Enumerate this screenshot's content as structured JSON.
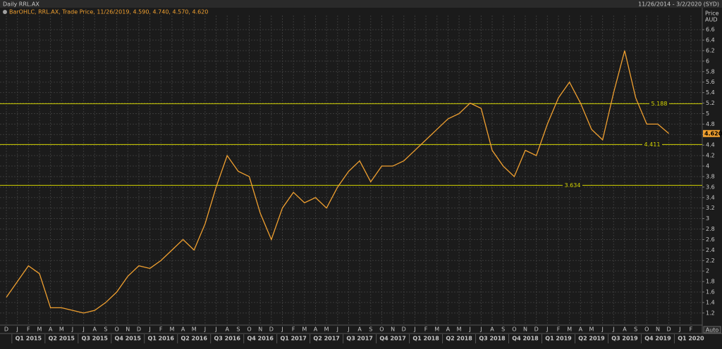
{
  "chart_data": {
    "type": "line",
    "title": "Daily RRL.AX",
    "date_range": "11/26/2014 - 3/2/2020 (SYD)",
    "legend_text": "BarOHLC, RRL.AX, Trade Price, 11/26/2019, 4.590, 4.740, 4.570, 4.620",
    "y_label": "Price",
    "y_unit": "AUD",
    "scale_mode": "Auto",
    "categories": [
      "D",
      "J",
      "F",
      "M",
      "A",
      "M",
      "J",
      "J",
      "A",
      "S",
      "O",
      "N",
      "D",
      "J",
      "F",
      "M",
      "A",
      "M",
      "J",
      "J",
      "A",
      "S",
      "O",
      "N",
      "D",
      "J",
      "F",
      "M",
      "A",
      "M",
      "J",
      "J",
      "A",
      "S",
      "O",
      "N",
      "D",
      "J",
      "F",
      "M",
      "A",
      "M",
      "J",
      "J",
      "A",
      "S",
      "O",
      "N",
      "D",
      "J",
      "F",
      "M",
      "A",
      "M",
      "J",
      "J",
      "A",
      "S",
      "O",
      "N",
      "D",
      "J",
      "F"
    ],
    "quarters": [
      "Q1 2015",
      "Q2 2015",
      "Q3 2015",
      "Q4 2015",
      "Q1 2016",
      "Q2 2016",
      "Q3 2016",
      "Q4 2016",
      "Q1 2017",
      "Q2 2017",
      "Q3 2017",
      "Q4 2017",
      "Q1 2018",
      "Q2 2018",
      "Q3 2018",
      "Q4 2018",
      "Q1 2019",
      "Q2 2019",
      "Q3 2019",
      "Q4 2019",
      "Q1 2020"
    ],
    "series": [
      {
        "name": "RRL.AX",
        "color": "#f0a030",
        "values": [
          1.5,
          1.8,
          2.1,
          1.95,
          1.3,
          1.3,
          1.25,
          1.2,
          1.25,
          1.4,
          1.6,
          1.9,
          2.1,
          2.05,
          2.2,
          2.4,
          2.6,
          2.4,
          2.9,
          3.6,
          4.2,
          3.9,
          3.8,
          3.1,
          2.6,
          3.2,
          3.5,
          3.3,
          3.4,
          3.2,
          3.6,
          3.9,
          4.1,
          3.7,
          4.0,
          4.0,
          4.1,
          4.3,
          4.5,
          4.7,
          4.9,
          5.0,
          5.2,
          5.1,
          4.3,
          4.0,
          3.8,
          4.3,
          4.2,
          4.8,
          5.3,
          5.6,
          5.2,
          4.7,
          4.5,
          5.4,
          6.2,
          5.3,
          4.8,
          4.8,
          4.62,
          null,
          null
        ]
      }
    ],
    "levels": [
      5.188,
      4.411,
      3.634
    ],
    "level_color": "#d4d400",
    "last_price": {
      "value": 4.62,
      "label": "4.620"
    },
    "ylim": [
      0.97,
      6.87
    ],
    "yticks": [
      1.2,
      1.4,
      1.6,
      1.8,
      2,
      2.2,
      2.4,
      2.6,
      2.8,
      3,
      3.2,
      3.4,
      3.6,
      3.8,
      4,
      4.2,
      4.4,
      4.6,
      4.8,
      5,
      5.2,
      5.4,
      5.6,
      5.8,
      6,
      6.2,
      6.4,
      6.6
    ],
    "grid": true
  }
}
